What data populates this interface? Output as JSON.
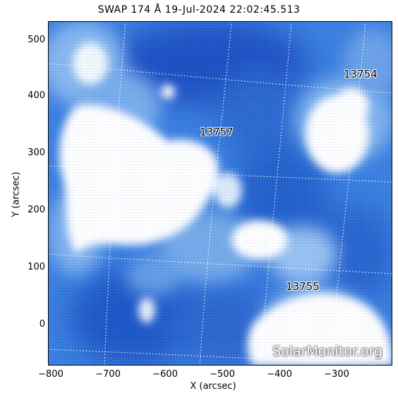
{
  "title": "SWAP 174 Å 19-Jul-2024 22:02:45.513",
  "axes": {
    "xlabel": "X (arcsec)",
    "ylabel": "Y (arcsec)",
    "xticks": [
      "−800",
      "−700",
      "−600",
      "−500",
      "−400",
      "−300"
    ],
    "yticks": [
      "500",
      "400",
      "300",
      "200",
      "100",
      "0"
    ]
  },
  "regions": [
    "13754",
    "13757",
    "13755"
  ],
  "watermark": "SolarMonitor.org",
  "colors": {
    "dark_blue": "#1a55c8",
    "mid_blue": "#3f86e3",
    "light_blue": "#9fc6f3",
    "bright": "#ffffff"
  }
}
